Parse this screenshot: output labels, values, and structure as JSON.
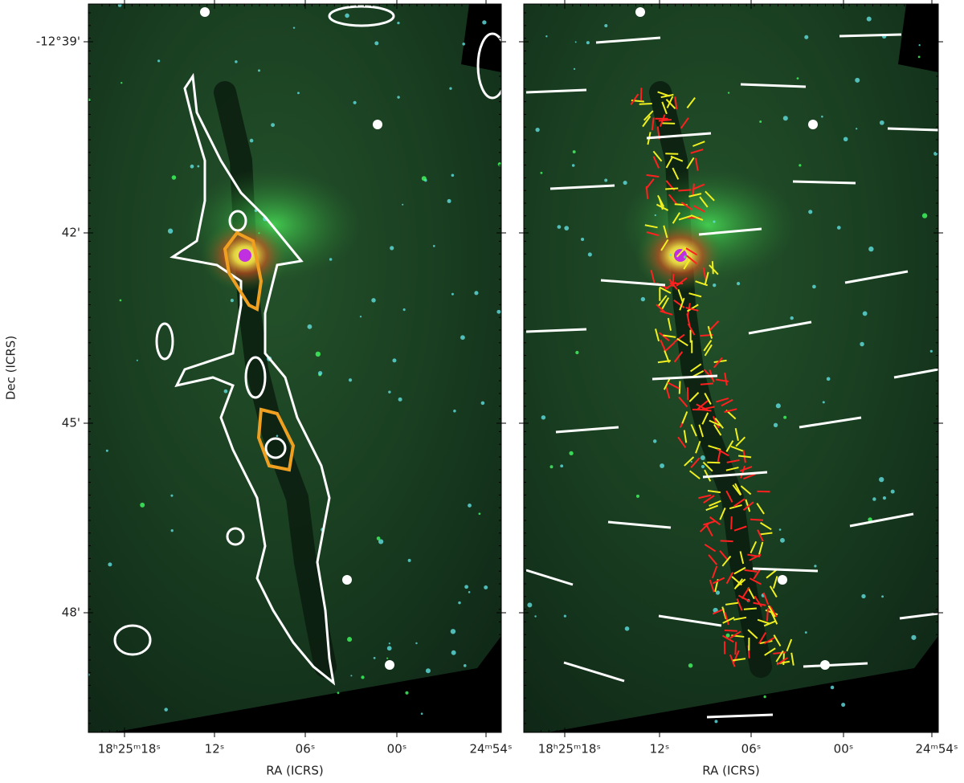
{
  "y_axis_label": "Dec (ICRS)",
  "y_tick_labels": [
    "-12°39'",
    "42'",
    "45'",
    "48'"
  ],
  "panels": [
    {
      "x_axis_label": "RA (ICRS)",
      "x_tick_labels": [
        "18ʰ25ᵐ18ˢ",
        "12ˢ",
        "06ˢ",
        "00ˢ",
        "24ᵐ54ˢ"
      ]
    },
    {
      "x_axis_label": "RA (ICRS)",
      "x_tick_labels": [
        "18ʰ25ᵐ18ˢ",
        "12ˢ",
        "06ˢ",
        "00ˢ",
        "24ᵐ54ˢ"
      ]
    }
  ]
}
